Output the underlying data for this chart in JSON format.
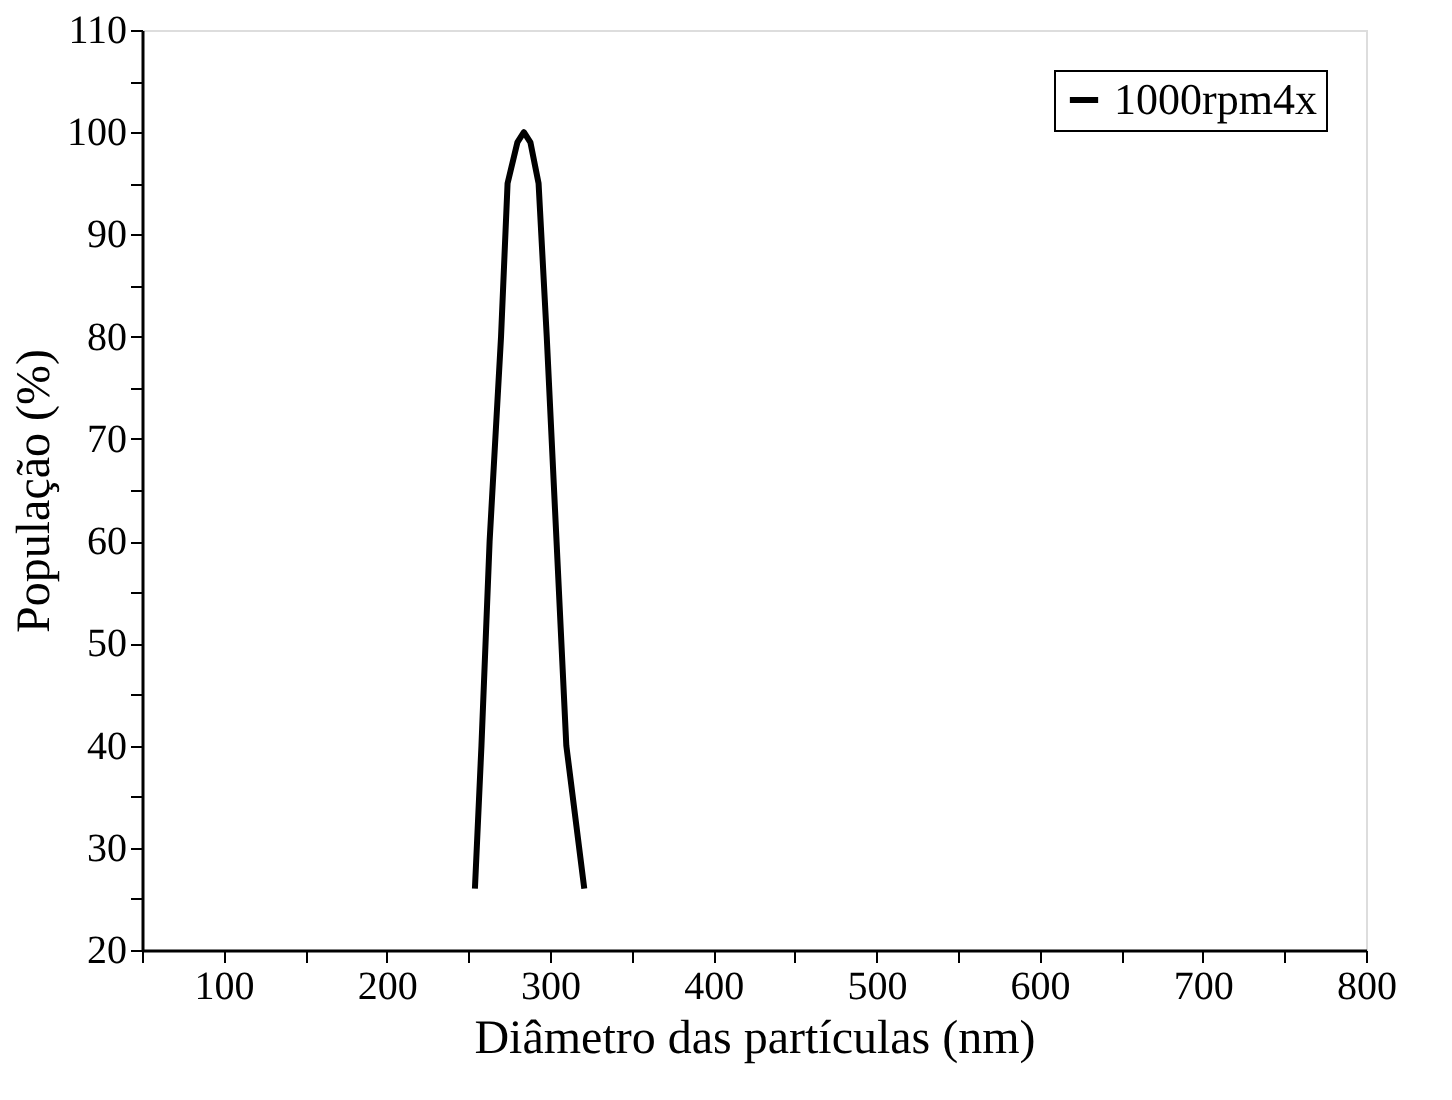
{
  "chart_data": {
    "type": "line",
    "xlabel": "Diâmetro das partículas (nm)",
    "ylabel": "População (%)",
    "series": [
      {
        "name": "1000rpm4x",
        "color": "#000000",
        "x": [
          254,
          258,
          263,
          270,
          274,
          280,
          284,
          288,
          293,
          298,
          304,
          310,
          321
        ],
        "values": [
          26,
          40,
          60,
          80,
          95,
          99,
          100,
          99,
          95,
          80,
          60,
          40,
          26
        ]
      }
    ],
    "xlim": [
      50,
      800
    ],
    "ylim": [
      20,
      110
    ],
    "xticks": [
      {
        "value": 50,
        "label": null
      },
      100,
      {
        "value": 150,
        "label": null
      },
      200,
      {
        "value": 250,
        "label": null
      },
      300,
      {
        "value": 350,
        "label": null
      },
      400,
      {
        "value": 450,
        "label": null
      },
      500,
      {
        "value": 550,
        "label": null
      },
      600,
      {
        "value": 650,
        "label": null
      },
      700,
      {
        "value": 750,
        "label": null
      },
      800
    ],
    "yticks": [
      20,
      {
        "value": 25,
        "label": null
      },
      30,
      {
        "value": 35,
        "label": null
      },
      40,
      {
        "value": 45,
        "label": null
      },
      50,
      {
        "value": 55,
        "label": null
      },
      60,
      {
        "value": 65,
        "label": null
      },
      70,
      {
        "value": 75,
        "label": null
      },
      80,
      {
        "value": 85,
        "label": null
      },
      90,
      {
        "value": 95,
        "label": null
      },
      100,
      {
        "value": 105,
        "label": null
      },
      110
    ],
    "legend": "top right",
    "grid": false,
    "line_style": "solid",
    "marker": "none"
  }
}
